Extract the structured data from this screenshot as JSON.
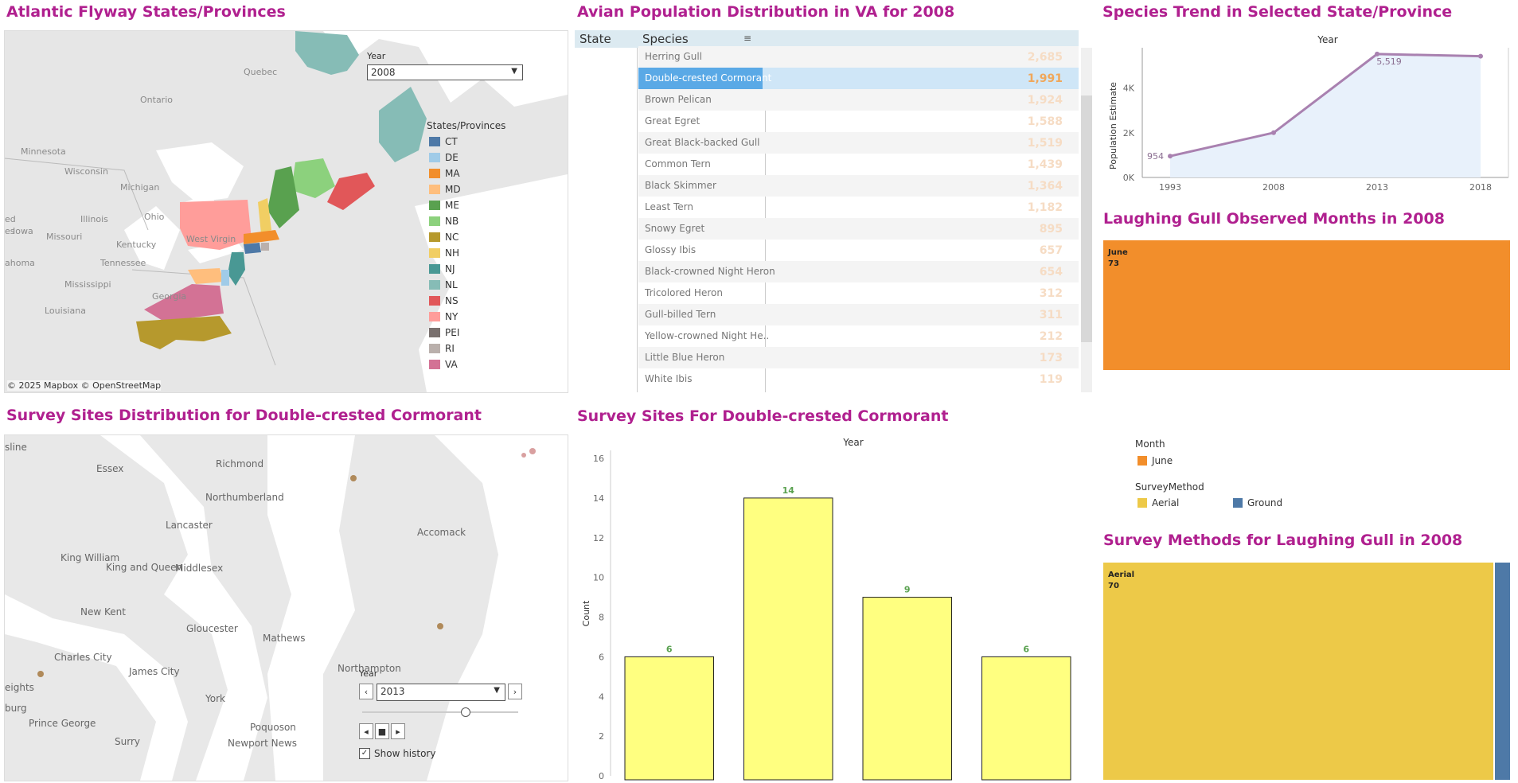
{
  "titles": {
    "flyway_map": "Atlantic Flyway States/Provinces",
    "avian_table": "Avian Population Distribution in VA for 2008",
    "species_trend": "Species Trend in Selected State/Province",
    "observed_months": "Laughing Gull Observed Months in 2008",
    "survey_sites_map": "Survey Sites Distribution for Double-crested Cormorant",
    "survey_sites_chart": "Survey Sites For Double-crested Cormorant",
    "survey_methods": "Survey Methods for Laughing Gull in 2008"
  },
  "flyway_map": {
    "year_label": "Year",
    "year_value": "2008",
    "legend_title": "States/Provinces",
    "legend": [
      {
        "code": "CT",
        "color": "#4e79a7"
      },
      {
        "code": "DE",
        "color": "#a0cbe8"
      },
      {
        "code": "MA",
        "color": "#f28e2b"
      },
      {
        "code": "MD",
        "color": "#ffbe7d"
      },
      {
        "code": "ME",
        "color": "#59a14f"
      },
      {
        "code": "NB",
        "color": "#8cd17d"
      },
      {
        "code": "NC",
        "color": "#b6992d"
      },
      {
        "code": "NH",
        "color": "#f1ce63"
      },
      {
        "code": "NJ",
        "color": "#499894"
      },
      {
        "code": "NL",
        "color": "#86bcb6"
      },
      {
        "code": "NS",
        "color": "#e15759"
      },
      {
        "code": "NY",
        "color": "#ff9d9a"
      },
      {
        "code": "PEI",
        "color": "#79706e"
      },
      {
        "code": "RI",
        "color": "#bab0ac"
      },
      {
        "code": "VA",
        "color": "#d37295"
      }
    ],
    "places": [
      "Quebec",
      "Ontario",
      "Minnesota",
      "Wisconsin",
      "Michigan",
      "Iowa",
      "Illinois",
      "Ohio",
      "Missouri",
      "Kentucky",
      "West Virgin",
      "Tennessee",
      "Mississippi",
      "Georgia",
      "Louisiana",
      "ahoma",
      "ed",
      "es"
    ],
    "attribution": "© 2025 Mapbox  © OpenStreetMap"
  },
  "avian_table": {
    "col_state": "State",
    "col_species": "Species",
    "rows": [
      {
        "species": "Herring Gull",
        "value": "2,685"
      },
      {
        "species": "Double-crested Cormorant",
        "value": "1,991"
      },
      {
        "species": "Brown Pelican",
        "value": "1,924"
      },
      {
        "species": "Great Egret",
        "value": "1,588"
      },
      {
        "species": "Great Black-backed Gull",
        "value": "1,519"
      },
      {
        "species": "Common Tern",
        "value": "1,439"
      },
      {
        "species": "Black Skimmer",
        "value": "1,364"
      },
      {
        "species": "Least Tern",
        "value": "1,182"
      },
      {
        "species": "Snowy Egret",
        "value": "895"
      },
      {
        "species": "Glossy Ibis",
        "value": "657"
      },
      {
        "species": "Black-crowned Night Heron",
        "value": "654"
      },
      {
        "species": "Tricolored Heron",
        "value": "312"
      },
      {
        "species": "Gull-billed Tern",
        "value": "311"
      },
      {
        "species": "Yellow-crowned Night He..",
        "value": "212"
      },
      {
        "species": "Little Blue Heron",
        "value": "173"
      },
      {
        "species": "White Ibis",
        "value": "119"
      }
    ]
  },
  "trend_chart": {
    "type": "line",
    "x_title": "Year",
    "y_title": "Population Estimate",
    "x": [
      "1993",
      "2008",
      "2013",
      "2018"
    ],
    "values": [
      954,
      2000,
      5519,
      5420
    ],
    "point_labels": [
      "954",
      "",
      "5,519",
      ""
    ],
    "ylim": [
      0,
      5800
    ],
    "yticks": [
      {
        "v": 0,
        "t": "0K"
      },
      {
        "v": 2000,
        "t": "2K"
      },
      {
        "v": 4000,
        "t": "4K"
      }
    ],
    "color": "#a981b0"
  },
  "observed_months": {
    "month": "June",
    "value": "73",
    "color": "#f28e2b"
  },
  "legends": {
    "month_title": "Month",
    "month_item": "June",
    "month_color": "#f28e2b",
    "method_title": "SurveyMethod",
    "method_aerial": "Aerial",
    "method_ground": "Ground",
    "aerial_color": "#edc948",
    "ground_color": "#4e79a7"
  },
  "survey_methods": {
    "label": "Aerial",
    "value": "70"
  },
  "survey_sites_map": {
    "places": [
      "Essex",
      "Richmond",
      "Northumberland",
      "Lancaster",
      "King William",
      "King and Queen",
      "Middlesex",
      "New Kent",
      "Gloucester",
      "Mathews",
      "Charles City",
      "James City",
      "York",
      "Prince George",
      "Newport News",
      "Poquoson",
      "Surry",
      "Accomack",
      "Northampton",
      "sline",
      "burg",
      "eights"
    ],
    "year_label": "Year",
    "year_value": "2013",
    "show_history": "Show history"
  },
  "bar_chart": {
    "type": "bar",
    "x_title": "Year",
    "y_title": "Count",
    "values": [
      6,
      14,
      9,
      6
    ],
    "ylim": [
      0,
      16
    ],
    "yticks": [
      0,
      2,
      4,
      6,
      8,
      10,
      12,
      14,
      16
    ],
    "bar_color": "#ffff80",
    "label_color": "#59a14f"
  }
}
